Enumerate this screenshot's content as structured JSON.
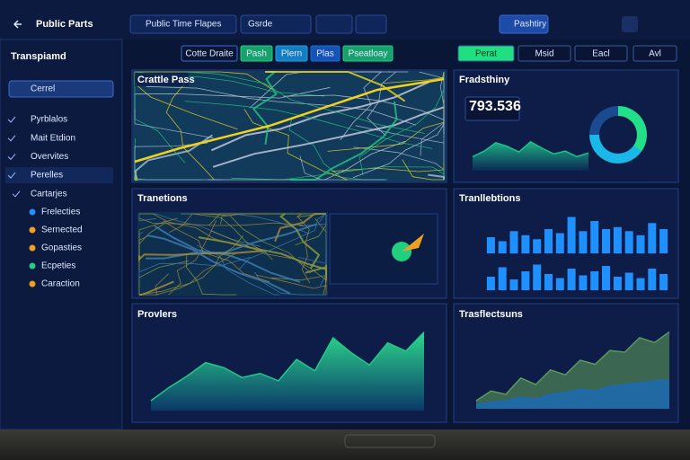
{
  "header": {
    "title": "Public Parts",
    "dropdown": "Public Time Flapes",
    "search": "Gsrde",
    "button": "Pashtiry"
  },
  "sidebar": {
    "title": "Transpiamd",
    "selected": "Cerrel",
    "items": [
      "Pyrblalos",
      "Mait Etdion",
      "Overvites",
      "Perelles",
      "Cartarjes"
    ],
    "subitems": [
      {
        "label": "Frelecties",
        "color": "#2a8cff"
      },
      {
        "label": "Sernected",
        "color": "#f0a020"
      },
      {
        "label": "Gopasties",
        "color": "#f0a020"
      },
      {
        "label": "Ecpeties",
        "color": "#20d080"
      },
      {
        "label": "Caraction",
        "color": "#f0a020"
      }
    ]
  },
  "filters": [
    "Cotte Draite",
    "Pash",
    "Plern",
    "Plas",
    "Pseatloay"
  ],
  "tabs": [
    "Perat",
    "Msid",
    "Eacl",
    "Avl"
  ],
  "panels": {
    "map1": {
      "title": "Crattle Pass"
    },
    "kpi": {
      "title": "Fradsthiny",
      "value": "793.536",
      "line": {
        "type": "area",
        "color": "#1fc08a",
        "ylim": [
          0,
          100
        ],
        "values": [
          30,
          42,
          60,
          52,
          40,
          62,
          48,
          36,
          42,
          30,
          38
        ]
      },
      "donut": {
        "type": "pie",
        "values": [
          35,
          40,
          25
        ],
        "colors": [
          "#22e08a",
          "#19b8e8",
          "#1a4a90"
        ]
      }
    },
    "map2": {
      "title": "Tranetions"
    },
    "bars": {
      "title": "Tranllebtions",
      "type": "bar",
      "ylim": [
        0,
        100
      ],
      "series": [
        {
          "color": "#1e90ff",
          "values": [
            40,
            30,
            55,
            45,
            35,
            60,
            50,
            90,
            55,
            80,
            60,
            65,
            55,
            45,
            75,
            60
          ]
        },
        {
          "color": "#1e90ff",
          "values": [
            50,
            85,
            40,
            70,
            95,
            60,
            45,
            80,
            55,
            70,
            90,
            50,
            65,
            45,
            80,
            60
          ]
        }
      ]
    },
    "area1": {
      "title": "Provlers",
      "type": "area",
      "color": "#22c88a",
      "ylim": [
        0,
        100
      ],
      "values": [
        12,
        28,
        42,
        58,
        52,
        40,
        45,
        36,
        62,
        48,
        88,
        70,
        55,
        82,
        72,
        95
      ]
    },
    "area2": {
      "title": "Trasflectsuns",
      "type": "area",
      "ylim": [
        0,
        100
      ],
      "series": [
        {
          "color": "#5a9a5a",
          "values": [
            10,
            22,
            18,
            38,
            30,
            48,
            42,
            60,
            55,
            72,
            70,
            88,
            82,
            95
          ]
        },
        {
          "color": "#1a6ab8",
          "values": [
            5,
            8,
            10,
            14,
            12,
            18,
            20,
            24,
            22,
            28,
            30,
            32,
            34,
            36
          ]
        }
      ]
    }
  }
}
